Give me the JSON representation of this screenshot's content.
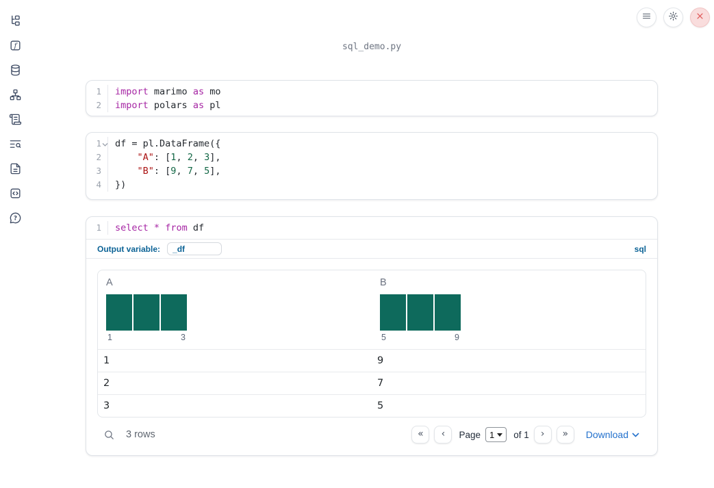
{
  "window": {
    "title": "sql_demo.py"
  },
  "sidebar": {
    "items": [
      {
        "icon": "file-tree-icon"
      },
      {
        "icon": "functions-icon"
      },
      {
        "icon": "database-icon"
      },
      {
        "icon": "dependency-graph-icon"
      },
      {
        "icon": "scratchpad-scroll-icon"
      },
      {
        "icon": "logs-search-icon"
      },
      {
        "icon": "documentation-icon"
      },
      {
        "icon": "snippets-code-icon"
      },
      {
        "icon": "help-icon"
      }
    ]
  },
  "topbar": {
    "icons": [
      "menu-icon",
      "settings-gear-icon",
      "shutdown-close-icon"
    ]
  },
  "cells": [
    {
      "name": "imports-cell",
      "lines": [
        {
          "num": "1",
          "tokens": [
            {
              "t": "kw",
              "x": "import"
            },
            {
              "t": "pl",
              "x": " marimo "
            },
            {
              "t": "kw",
              "x": "as"
            },
            {
              "t": "pl",
              "x": " mo"
            }
          ]
        },
        {
          "num": "2",
          "tokens": [
            {
              "t": "kw",
              "x": "import"
            },
            {
              "t": "pl",
              "x": " polars "
            },
            {
              "t": "kw",
              "x": "as"
            },
            {
              "t": "pl",
              "x": " pl"
            }
          ]
        }
      ]
    },
    {
      "name": "dataframe-cell",
      "lines": [
        {
          "num": "1",
          "tokens": [
            {
              "t": "pl",
              "x": "df = pl.DataFrame({"
            }
          ]
        },
        {
          "num": "2",
          "tokens": [
            {
              "t": "pl",
              "x": "    "
            },
            {
              "t": "str",
              "x": "\"A\""
            },
            {
              "t": "pl",
              "x": ": ["
            },
            {
              "t": "num",
              "x": "1"
            },
            {
              "t": "pl",
              "x": ", "
            },
            {
              "t": "num",
              "x": "2"
            },
            {
              "t": "pl",
              "x": ", "
            },
            {
              "t": "num",
              "x": "3"
            },
            {
              "t": "pl",
              "x": "],"
            }
          ]
        },
        {
          "num": "3",
          "tokens": [
            {
              "t": "pl",
              "x": "    "
            },
            {
              "t": "str",
              "x": "\"B\""
            },
            {
              "t": "pl",
              "x": ": ["
            },
            {
              "t": "num",
              "x": "9"
            },
            {
              "t": "pl",
              "x": ", "
            },
            {
              "t": "num",
              "x": "7"
            },
            {
              "t": "pl",
              "x": ", "
            },
            {
              "t": "num",
              "x": "5"
            },
            {
              "t": "pl",
              "x": "],"
            }
          ]
        },
        {
          "num": "4",
          "tokens": [
            {
              "t": "pl",
              "x": "})"
            }
          ]
        }
      ]
    },
    {
      "name": "sql-cell",
      "lines": [
        {
          "num": "1",
          "tokens": [
            {
              "t": "kw",
              "x": "select"
            },
            {
              "t": "pl",
              "x": " "
            },
            {
              "t": "kw",
              "x": "*"
            },
            {
              "t": "pl",
              "x": " "
            },
            {
              "t": "kw",
              "x": "from"
            },
            {
              "t": "pl",
              "x": " df"
            }
          ]
        }
      ],
      "output_variable_label": "Output variable:",
      "output_variable_value": "_df",
      "language_badge": "sql"
    }
  ],
  "table": {
    "columns": [
      "A",
      "B"
    ],
    "rows": [
      [
        "1",
        "9"
      ],
      [
        "2",
        "7"
      ],
      [
        "3",
        "5"
      ]
    ],
    "footer": {
      "row_count": "3 rows",
      "first_page": "«",
      "prev_page": "‹",
      "page_label": "Page",
      "page_value": "1",
      "page_total": "of 1",
      "next_page": "›",
      "last_page": "»",
      "download_label": "Download"
    }
  },
  "chart_data": [
    {
      "type": "bar",
      "column": "A",
      "values": [
        1,
        1,
        1
      ],
      "tick_labels": [
        "1",
        "3"
      ],
      "bar_color": "#0e6a5c"
    },
    {
      "type": "bar",
      "column": "B",
      "values": [
        1,
        1,
        1
      ],
      "tick_labels": [
        "5",
        "9"
      ],
      "bar_color": "#0e6a5c"
    }
  ],
  "colors": {
    "keyword": "#a626a4",
    "string": "#aa1111",
    "number": "#116644",
    "bar_teal": "#0e6a5c",
    "accent_blue": "#0c6396",
    "link_blue": "#2270cc",
    "danger_red": "#e05b5b"
  }
}
